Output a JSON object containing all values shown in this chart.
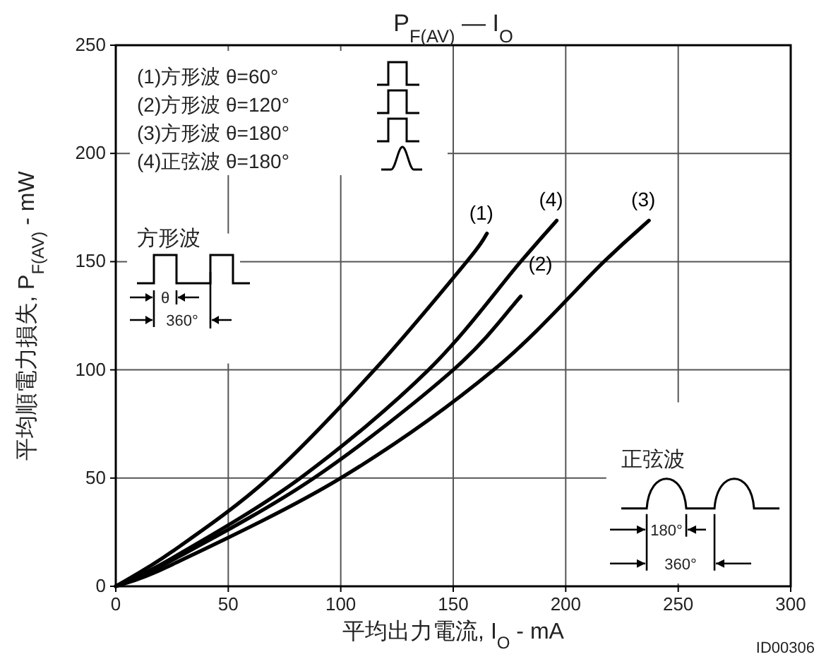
{
  "chart_data": {
    "type": "line",
    "title": "P$_{F(AV)}$ — I$_{O}$",
    "xlabel": "平均出力電流, I$_{O}$ - mA",
    "ylabel": "平均順電力損失, P$_{F(AV)}$ - mW",
    "xlim": [
      0,
      300
    ],
    "ylim": [
      0,
      250
    ],
    "xticks": [
      0,
      50,
      100,
      150,
      200,
      250,
      300
    ],
    "yticks": [
      0,
      50,
      100,
      150,
      200,
      250
    ],
    "grid": true,
    "series": [
      {
        "name": "(1)",
        "color": "#000000",
        "x": [
          0,
          25,
          68,
          115,
          156,
          165
        ],
        "values": [
          0,
          16,
          50,
          100,
          150,
          163
        ]
      },
      {
        "name": "(2)",
        "color": "#000000",
        "x": [
          0,
          25,
          88,
          150,
          180
        ],
        "values": [
          0,
          12,
          50,
          100,
          134
        ]
      },
      {
        "name": "(3)",
        "color": "#000000",
        "x": [
          0,
          25,
          100,
          168,
          217,
          237
        ],
        "values": [
          0,
          10,
          50,
          100,
          150,
          169
        ]
      },
      {
        "name": "(4)",
        "color": "#000000",
        "x": [
          0,
          25,
          82,
          139,
          180,
          196
        ],
        "values": [
          0,
          13,
          50,
          100,
          150,
          169
        ]
      }
    ],
    "annotations": [
      "(1)方形波 θ=60°",
      "(2)方形波 θ=120°",
      "(3)方形波 θ=180°",
      "(4)正弦波 θ=180°",
      "方形波",
      "θ",
      "360°",
      "正弦波",
      "180°",
      "360°",
      "ID00306"
    ]
  }
}
